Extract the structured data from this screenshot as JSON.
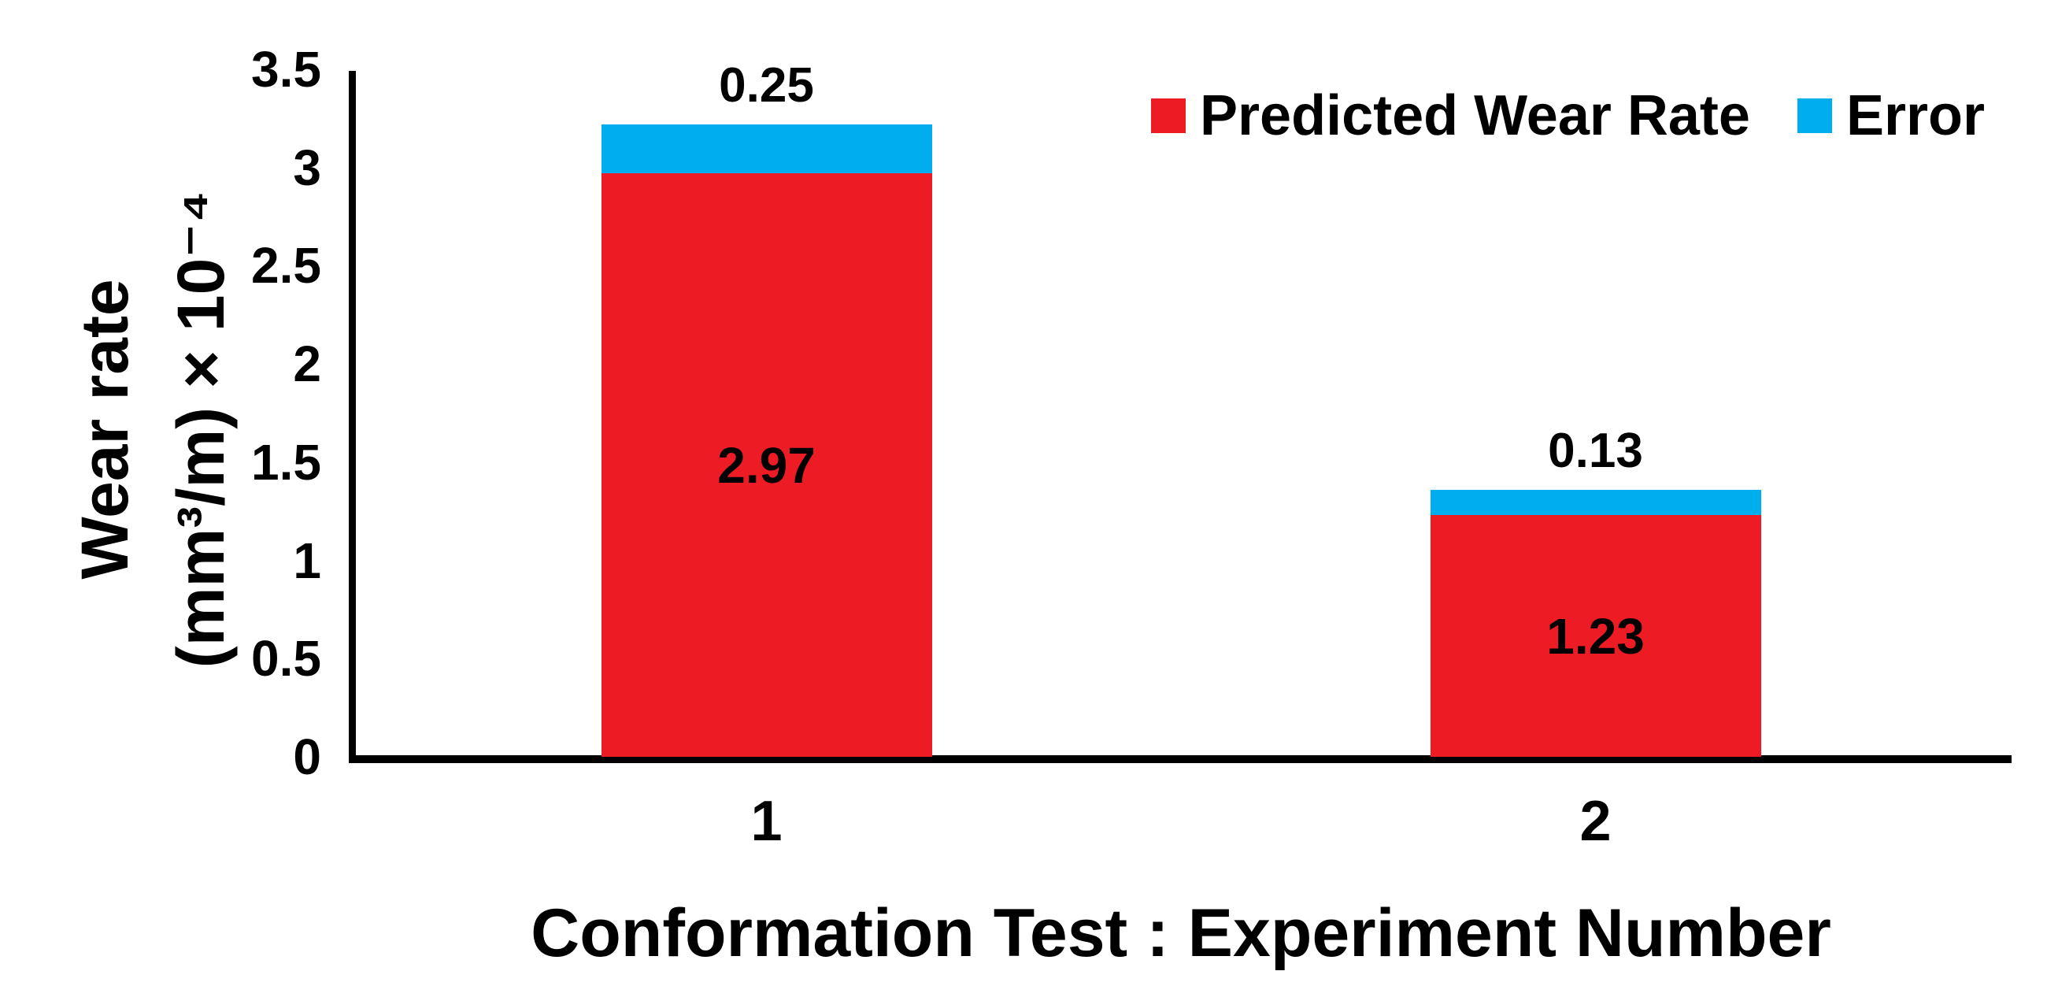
{
  "chart_data": {
    "type": "bar",
    "stacked": true,
    "title": "",
    "xlabel": "Conformation Test : Experiment Number",
    "ylabel_lines": [
      "Wear rate",
      "(mm³/m) × 10⁻⁴"
    ],
    "categories": [
      "1",
      "2"
    ],
    "series": [
      {
        "name": "Predicted Wear Rate",
        "color": "#ED1C24",
        "values": [
          2.97,
          1.23
        ],
        "value_labels": [
          "2.97",
          "1.23"
        ],
        "label_placement": "inside"
      },
      {
        "name": "Error",
        "color": "#00AEEF",
        "values": [
          0.25,
          0.13
        ],
        "value_labels": [
          "0.25",
          "0.13"
        ],
        "label_placement": "above"
      }
    ],
    "stack_totals": [
      3.22,
      1.36
    ],
    "ylim": [
      0,
      3.5
    ],
    "yticks": [
      0,
      0.5,
      1,
      1.5,
      2,
      2.5,
      3,
      3.5
    ],
    "ytick_labels": [
      "0",
      "0.5",
      "1",
      "1.5",
      "2",
      "2.5",
      "3",
      "3.5"
    ],
    "grid": false,
    "legend_position": "top-right",
    "colors": {
      "axis": "#000000",
      "text": "#000000",
      "background": "#FFFFFF"
    }
  }
}
